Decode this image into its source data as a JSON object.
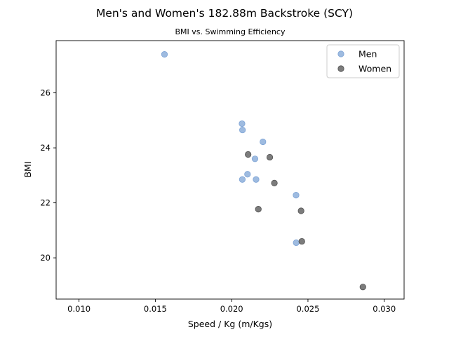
{
  "chart_data": {
    "type": "scatter",
    "title": "Men's and Women's 182.88m Backstroke (SCY)",
    "subtitle": "BMI vs. Swimming Efficiency",
    "xlabel": "Speed / Kg (m/Kgs)",
    "ylabel": "BMI",
    "xlim": [
      0.0085,
      0.0313
    ],
    "ylim": [
      18.5,
      27.9
    ],
    "xticks": [
      0.01,
      0.015,
      0.02,
      0.025,
      0.03
    ],
    "xtick_labels": [
      "0.010",
      "0.015",
      "0.020",
      "0.025",
      "0.030"
    ],
    "yticks": [
      20,
      22,
      24,
      26
    ],
    "ytick_labels": [
      "20",
      "22",
      "24",
      "26"
    ],
    "grid": false,
    "legend_position": "top-right",
    "series": [
      {
        "name": "Men",
        "color": "#7ea4d6",
        "points": [
          {
            "x": 0.0156,
            "y": 27.4
          },
          {
            "x": 0.02068,
            "y": 24.88
          },
          {
            "x": 0.02071,
            "y": 24.65
          },
          {
            "x": 0.02205,
            "y": 24.22
          },
          {
            "x": 0.02153,
            "y": 23.6
          },
          {
            "x": 0.02104,
            "y": 23.04
          },
          {
            "x": 0.0207,
            "y": 22.85
          },
          {
            "x": 0.0216,
            "y": 22.85
          },
          {
            "x": 0.02422,
            "y": 22.28
          },
          {
            "x": 0.02423,
            "y": 20.55
          }
        ]
      },
      {
        "name": "Women",
        "color": "#505050",
        "points": [
          {
            "x": 0.02108,
            "y": 23.76
          },
          {
            "x": 0.0225,
            "y": 23.66
          },
          {
            "x": 0.0228,
            "y": 22.72
          },
          {
            "x": 0.02175,
            "y": 21.77
          },
          {
            "x": 0.02455,
            "y": 21.71
          },
          {
            "x": 0.0246,
            "y": 20.6
          },
          {
            "x": 0.0286,
            "y": 18.94
          }
        ]
      }
    ]
  }
}
